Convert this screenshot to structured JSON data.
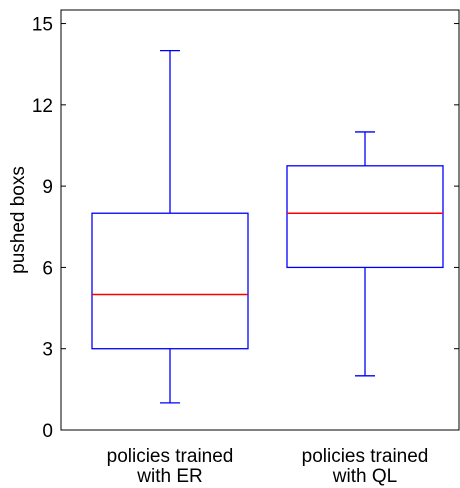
{
  "chart_data": {
    "type": "box",
    "ylabel": "pushed boxs",
    "xlabel": "",
    "title": "",
    "ylim": [
      0,
      15.5
    ],
    "yticks": [
      0,
      3,
      6,
      9,
      12,
      15
    ],
    "grid": false,
    "categories": [
      [
        "policies trained",
        "with ER"
      ],
      [
        "policies trained",
        "with QL"
      ]
    ],
    "boxes": [
      {
        "whisker_low": 1,
        "q1": 3,
        "median": 5,
        "q3": 8,
        "whisker_high": 14
      },
      {
        "whisker_low": 2,
        "q1": 6,
        "median": 8,
        "q3": 9.75,
        "whisker_high": 11
      }
    ],
    "colors": {
      "box": "#0000ff",
      "median": "#ff0000",
      "axes": "#000000"
    }
  }
}
